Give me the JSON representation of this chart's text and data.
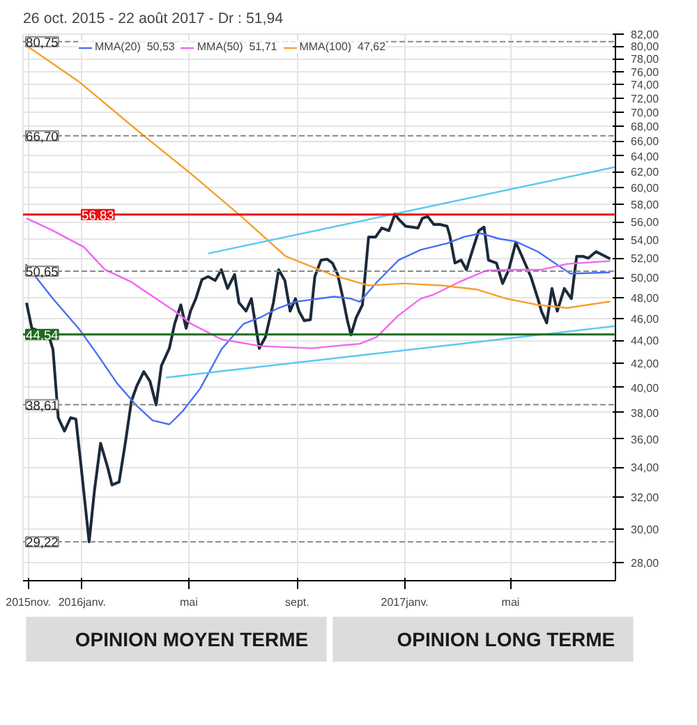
{
  "chart_data": {
    "type": "line",
    "title": "26 oct. 2015 - 22 août 2017 - Dr : 51,94",
    "log": "y",
    "grid": true,
    "legend": "top left",
    "marker": "none",
    "xlim": [
      "2015-10-26",
      "2017-08-28"
    ],
    "ylim": [
      27,
      82
    ],
    "xticks": [
      {
        "value": "2015-11",
        "label": "2015nov."
      },
      {
        "value": "2016-01",
        "label": "2016janv."
      },
      {
        "value": "2016-05",
        "label": "mai"
      },
      {
        "value": "2016-09",
        "label": "sept."
      },
      {
        "value": "2017-01",
        "label": "2017janv."
      },
      {
        "value": "2017-05",
        "label": "mai"
      }
    ],
    "yticks": [
      {
        "value": 28,
        "label": "28,00"
      },
      {
        "value": 30,
        "label": "30,00"
      },
      {
        "value": 32,
        "label": "32,00"
      },
      {
        "value": 34,
        "label": "34,00"
      },
      {
        "value": 36,
        "label": "36,00"
      },
      {
        "value": 38,
        "label": "38,00"
      },
      {
        "value": 40,
        "label": "40,00"
      },
      {
        "value": 42,
        "label": "42,00"
      },
      {
        "value": 44,
        "label": "44,00"
      },
      {
        "value": 46,
        "label": "46,00"
      },
      {
        "value": 48,
        "label": "48,00"
      },
      {
        "value": 50,
        "label": "50,00"
      },
      {
        "value": 52,
        "label": "52,00"
      },
      {
        "value": 54,
        "label": "54,00"
      },
      {
        "value": 56,
        "label": "56,00"
      },
      {
        "value": 58,
        "label": "58,00"
      },
      {
        "value": 60,
        "label": "60,00"
      },
      {
        "value": 62,
        "label": "62,00"
      },
      {
        "value": 64,
        "label": "64,00"
      },
      {
        "value": 66,
        "label": "66,00"
      },
      {
        "value": 68,
        "label": "68,00"
      },
      {
        "value": 70,
        "label": "70,00"
      },
      {
        "value": 72,
        "label": "72,00"
      },
      {
        "value": 74,
        "label": "74,00"
      },
      {
        "value": 76,
        "label": "76,00"
      },
      {
        "value": 78,
        "label": "78,00"
      },
      {
        "value": 80,
        "label": "80,00"
      },
      {
        "value": 82,
        "label": "82,00"
      }
    ],
    "series": [
      {
        "color": "#1c2a3a",
        "x": [
          "2015-10-30",
          "2015-11-05",
          "2015-11-24",
          "2015-11-29",
          "2015-12-05",
          "2015-12-12",
          "2015-12-19",
          "2015-12-25",
          "2015-12-31",
          "2016-01-09",
          "2016-01-15",
          "2016-01-22",
          "2016-01-30",
          "2016-02-04",
          "2016-02-12",
          "2016-02-19",
          "2016-02-26",
          "2016-03-03",
          "2016-03-11",
          "2016-03-18",
          "2016-03-25",
          "2016-03-31",
          "2016-04-09",
          "2016-04-15",
          "2016-04-22",
          "2016-04-28",
          "2016-05-03",
          "2016-05-09",
          "2016-05-16",
          "2016-05-23",
          "2016-05-31",
          "2016-06-07",
          "2016-06-14",
          "2016-06-22",
          "2016-06-27",
          "2016-07-05",
          "2016-07-11",
          "2016-07-20",
          "2016-07-27",
          "2016-08-05",
          "2016-08-11",
          "2016-08-18",
          "2016-08-24",
          "2016-08-30",
          "2016-09-03",
          "2016-09-09",
          "2016-09-16",
          "2016-09-21",
          "2016-09-28",
          "2016-10-05",
          "2016-10-11",
          "2016-10-17",
          "2016-10-23",
          "2016-10-28",
          "2016-11-01",
          "2016-11-07",
          "2016-11-14",
          "2016-11-21",
          "2016-11-29",
          "2016-12-06",
          "2016-12-14",
          "2016-12-21",
          "2016-12-25",
          "2017-01-02",
          "2017-01-16",
          "2017-01-21",
          "2017-01-27",
          "2017-02-03",
          "2017-02-10",
          "2017-02-18",
          "2017-02-21",
          "2017-02-27",
          "2017-03-06",
          "2017-03-12",
          "2017-03-19",
          "2017-03-26",
          "2017-04-01",
          "2017-04-06",
          "2017-04-15",
          "2017-04-22",
          "2017-04-29",
          "2017-05-07",
          "2017-05-14",
          "2017-05-24",
          "2017-06-01",
          "2017-06-05",
          "2017-06-11",
          "2017-06-17",
          "2017-06-23",
          "2017-07-01",
          "2017-07-09",
          "2017-07-15",
          "2017-07-22",
          "2017-07-28",
          "2017-08-06",
          "2017-08-22"
        ],
        "values": [
          47.5,
          45.1,
          44.5,
          43.2,
          37.6,
          36.6,
          37.6,
          37.5,
          34.0,
          29.22,
          32.4,
          35.7,
          34.0,
          32.8,
          33.0,
          35.7,
          38.9,
          40.1,
          41.3,
          40.5,
          38.6,
          41.8,
          43.3,
          45.5,
          47.3,
          45.1,
          46.7,
          47.9,
          49.8,
          50.1,
          49.7,
          50.8,
          48.9,
          50.3,
          47.5,
          46.7,
          47.9,
          43.3,
          44.3,
          47.5,
          50.8,
          49.7,
          46.7,
          47.9,
          46.7,
          45.8,
          45.9,
          50.1,
          51.8,
          51.9,
          51.5,
          50.3,
          47.9,
          45.8,
          44.5,
          46.1,
          47.3,
          54.3,
          54.3,
          55.3,
          55.0,
          56.9,
          56.3,
          55.5,
          55.3,
          56.4,
          56.6,
          55.7,
          55.7,
          55.5,
          54.5,
          51.5,
          51.8,
          50.8,
          52.9,
          55.0,
          55.4,
          51.8,
          51.5,
          49.4,
          50.8,
          53.7,
          52.2,
          50.1,
          47.9,
          46.7,
          45.6,
          48.9,
          46.7,
          48.9,
          47.9,
          52.2,
          52.2,
          52.0,
          52.7,
          51.94
        ]
      },
      {
        "name": "MMA(20)  50,53",
        "color": "#4b6ef5",
        "x": [
          "2015-10-29",
          "2015-11-29",
          "2015-12-28",
          "2016-01-18",
          "2016-02-10",
          "2016-03-02",
          "2016-03-21",
          "2016-04-09",
          "2016-04-24",
          "2016-05-14",
          "2016-06-07",
          "2016-07-02",
          "2016-07-21",
          "2016-08-11",
          "2016-08-30",
          "2016-10-13",
          "2016-11-01",
          "2016-11-11",
          "2016-11-30",
          "2016-12-25",
          "2017-01-19",
          "2017-02-18",
          "2017-03-09",
          "2017-03-28",
          "2017-04-18",
          "2017-05-07",
          "2017-06-01",
          "2017-06-20",
          "2017-07-08",
          "2017-08-22"
        ],
        "values": [
          51.4,
          47.9,
          45.1,
          42.8,
          40.3,
          38.6,
          37.4,
          37.1,
          38.1,
          39.9,
          43.2,
          45.5,
          46.1,
          47.0,
          47.6,
          48.1,
          47.9,
          47.6,
          49.5,
          51.8,
          52.9,
          53.6,
          54.3,
          54.7,
          54.1,
          53.8,
          52.7,
          51.5,
          50.4,
          50.53
        ]
      },
      {
        "name": "MMA(50)  51,71",
        "color": "#f266f2",
        "x": [
          "2015-10-30",
          "2015-11-29",
          "2016-01-03",
          "2016-01-27",
          "2016-02-25",
          "2016-03-25",
          "2016-04-15",
          "2016-05-04",
          "2016-06-07",
          "2016-07-21",
          "2016-09-18",
          "2016-10-13",
          "2016-11-11",
          "2016-11-30",
          "2016-12-25",
          "2017-01-19",
          "2017-02-03",
          "2017-03-05",
          "2017-04-03",
          "2017-04-26",
          "2017-06-05",
          "2017-07-04",
          "2017-08-22"
        ],
        "values": [
          56.4,
          55.0,
          53.2,
          50.8,
          49.6,
          47.9,
          46.7,
          45.5,
          44.1,
          43.5,
          43.3,
          43.5,
          43.7,
          44.3,
          46.3,
          47.9,
          48.3,
          49.6,
          50.7,
          50.8,
          50.8,
          51.4,
          51.71
        ]
      },
      {
        "name": "MMA(100)  47,62",
        "color": "#f5a030",
        "x": [
          "2015-10-30",
          "2015-12-28",
          "2016-03-06",
          "2016-05-04",
          "2016-07-02",
          "2016-08-19",
          "2016-10-13",
          "2016-11-21",
          "2016-12-30",
          "2017-02-12",
          "2017-03-24",
          "2017-04-26",
          "2017-06-01",
          "2017-07-04",
          "2017-08-22"
        ],
        "values": [
          80.1,
          74.5,
          67.2,
          61.7,
          56.4,
          52.2,
          50.2,
          49.2,
          49.4,
          49.2,
          48.8,
          47.9,
          47.3,
          47.0,
          47.62
        ]
      },
      {
        "color": "#5bc8f0",
        "x": [
          "2016-05-23",
          "2017-08-28"
        ],
        "values": [
          52.5,
          62.6
        ]
      },
      {
        "color": "#5bc8f0",
        "x": [
          "2016-04-05",
          "2017-08-28"
        ],
        "values": [
          40.8,
          45.3
        ]
      }
    ],
    "ref_lines": [
      {
        "axis": "y",
        "value": 80.75,
        "label": "80,75",
        "color": "#888888",
        "line_style": "dashed"
      },
      {
        "axis": "y",
        "value": 66.7,
        "label": "66,70",
        "color": "#888888",
        "line_style": "dashed"
      },
      {
        "axis": "y",
        "value": 56.83,
        "label": "56,83",
        "color": "#ee1111",
        "line_style": "solid"
      },
      {
        "axis": "y",
        "value": 50.65,
        "label": "50,65",
        "color": "#888888",
        "line_style": "dashed"
      },
      {
        "axis": "y",
        "value": 44.54,
        "label": "44,54",
        "color": "#1e6b1e",
        "line_style": "solid"
      },
      {
        "axis": "y",
        "value": 38.61,
        "label": "38,61",
        "color": "#888888",
        "line_style": "dashed"
      },
      {
        "axis": "y",
        "value": 29.22,
        "label": "29,22",
        "color": "#888888",
        "line_style": "dashed"
      }
    ],
    "annotations": [
      "OPINION MOYEN TERME",
      "OPINION LONG TERME"
    ]
  }
}
